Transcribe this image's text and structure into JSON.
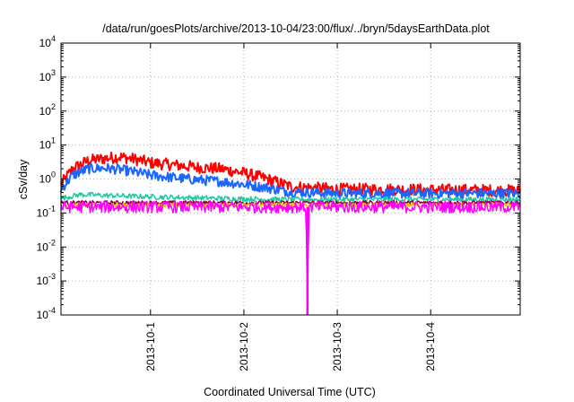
{
  "chart_data": {
    "type": "line",
    "title": "/data/run/goesPlots/archive/2013-10-04/23:00/flux/../bryn/5daysEarthData.plot",
    "xlabel": "Coordinated Universal Time (UTC)",
    "ylabel": "cSv/day",
    "y_scale": "log",
    "ylim": [
      0.0001,
      10000
    ],
    "xlim": [
      "2013-09-30 01:00",
      "2013-10-04 23:00"
    ],
    "x_ticks": [
      "2013-10-1",
      "2013-10-2",
      "2013-10-3",
      "2013-10-4"
    ],
    "y_ticks": [
      {
        "value": 0.0001,
        "base": "10",
        "exp": "-4"
      },
      {
        "value": 0.001,
        "base": "10",
        "exp": "-3"
      },
      {
        "value": 0.01,
        "base": "10",
        "exp": "-2"
      },
      {
        "value": 0.1,
        "base": "10",
        "exp": "-1"
      },
      {
        "value": 1,
        "base": "10",
        "exp": "0"
      },
      {
        "value": 10,
        "base": "10",
        "exp": "1"
      },
      {
        "value": 100,
        "base": "10",
        "exp": "2"
      },
      {
        "value": 1000,
        "base": "10",
        "exp": "3"
      },
      {
        "value": 10000,
        "base": "10",
        "exp": "4"
      }
    ],
    "grid": true,
    "series": [
      {
        "color": "#ff0000",
        "noise": 0.35,
        "x": [
          "2013-09-30 01:00",
          "2013-09-30 04:00",
          "2013-09-30 08:00",
          "2013-09-30 12:00",
          "2013-09-30 16:00",
          "2013-09-30 20:00",
          "2013-10-01 00:00",
          "2013-10-01 06:00",
          "2013-10-01 12:00",
          "2013-10-01 18:00",
          "2013-10-02 00:00",
          "2013-10-02 06:00",
          "2013-10-02 12:00",
          "2013-10-02 18:00",
          "2013-10-03 00:00",
          "2013-10-03 12:00",
          "2013-10-04 00:00",
          "2013-10-04 12:00",
          "2013-10-04 23:00"
        ],
        "values": [
          0.7,
          2.0,
          3.5,
          4.0,
          4.5,
          3.8,
          3.0,
          2.6,
          2.2,
          2.0,
          1.5,
          1.0,
          0.6,
          0.55,
          0.5,
          0.5,
          0.48,
          0.47,
          0.45
        ]
      },
      {
        "color": "#1a66ff",
        "noise": 0.3,
        "x": [
          "2013-09-30 01:00",
          "2013-09-30 04:00",
          "2013-09-30 08:00",
          "2013-09-30 12:00",
          "2013-09-30 16:00",
          "2013-09-30 20:00",
          "2013-10-01 00:00",
          "2013-10-01 06:00",
          "2013-10-01 12:00",
          "2013-10-01 18:00",
          "2013-10-02 00:00",
          "2013-10-02 06:00",
          "2013-10-02 12:00",
          "2013-10-02 18:00",
          "2013-10-03 00:00",
          "2013-10-03 12:00",
          "2013-10-04 00:00",
          "2013-10-04 12:00",
          "2013-10-04 23:00"
        ],
        "values": [
          0.5,
          1.3,
          2.0,
          2.1,
          1.9,
          1.6,
          1.3,
          1.1,
          0.95,
          0.85,
          0.7,
          0.55,
          0.42,
          0.4,
          0.38,
          0.38,
          0.38,
          0.38,
          0.38
        ]
      },
      {
        "color": "#20c8a0",
        "noise": 0.15,
        "x": [
          "2013-09-30 01:00",
          "2013-09-30 06:00",
          "2013-09-30 12:00",
          "2013-10-01 00:00",
          "2013-10-01 12:00",
          "2013-10-02 00:00",
          "2013-10-02 12:00",
          "2013-10-03 00:00",
          "2013-10-04 00:00",
          "2013-10-04 23:00"
        ],
        "values": [
          0.27,
          0.35,
          0.33,
          0.3,
          0.28,
          0.26,
          0.25,
          0.25,
          0.25,
          0.25
        ]
      },
      {
        "color": "#8b0030",
        "noise": 0.12,
        "x": [
          "2013-09-30 01:00",
          "2013-10-04 23:00"
        ],
        "values": [
          0.2,
          0.2
        ]
      },
      {
        "color": "#f0c000",
        "noise": 0.12,
        "x": [
          "2013-09-30 01:00",
          "2013-10-04 23:00"
        ],
        "values": [
          0.17,
          0.17
        ]
      },
      {
        "color": "#ff00ff",
        "noise": 0.35,
        "x": [
          "2013-09-30 01:00",
          "2013-10-02 16:00",
          "2013-10-02 16:20",
          "2013-10-02 16:40",
          "2013-10-04 23:00"
        ],
        "values": [
          0.15,
          0.15,
          0.0001,
          0.15,
          0.15
        ]
      }
    ]
  }
}
